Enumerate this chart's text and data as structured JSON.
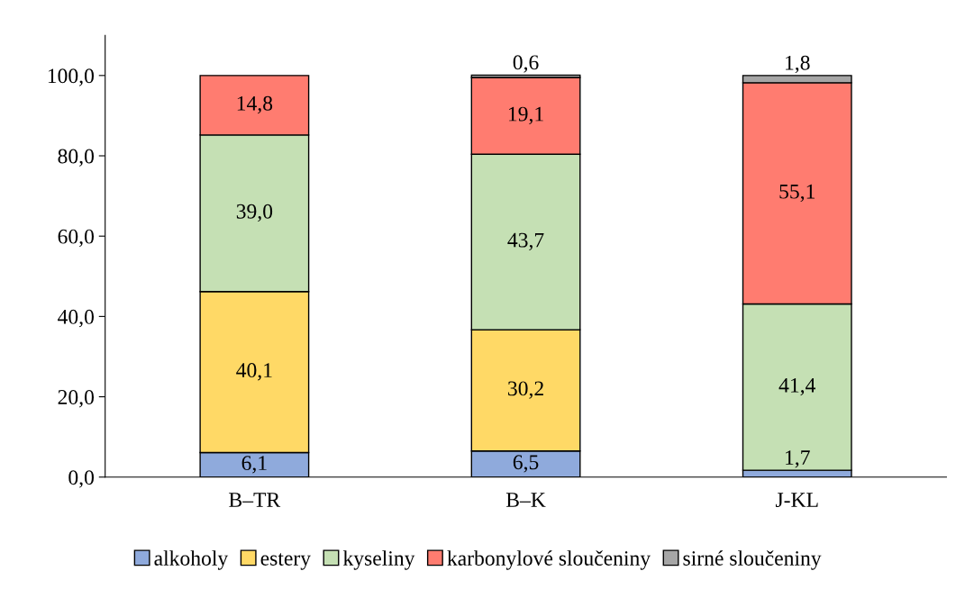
{
  "chart_data": {
    "type": "bar",
    "stacked": true,
    "categories": [
      "B–TR",
      "B–K",
      "J-KL"
    ],
    "series": [
      {
        "name": "alkoholy",
        "color": "#8faadc",
        "values": [
          6.1,
          6.5,
          1.7
        ],
        "value_labels": [
          "6,1",
          "6,5",
          "1,7"
        ]
      },
      {
        "name": "estery",
        "color": "#ffd966",
        "values": [
          40.1,
          30.2,
          null
        ],
        "value_labels": [
          "40,1",
          "30,2",
          null
        ]
      },
      {
        "name": "kyseliny",
        "color": "#c5e0b4",
        "values": [
          39.0,
          43.7,
          41.4
        ],
        "value_labels": [
          "39,0",
          "43,7",
          "41,4"
        ]
      },
      {
        "name": "karbonylové sloučeniny",
        "color": "#ff7c70",
        "values": [
          14.8,
          19.1,
          55.1
        ],
        "value_labels": [
          "14,8",
          "19,1",
          "55,1"
        ]
      },
      {
        "name": "sirné sloučeniny",
        "color": "#a6a6a6",
        "values": [
          null,
          0.6,
          1.8
        ],
        "value_labels": [
          null,
          "0,6",
          "1,8"
        ]
      }
    ],
    "ylim": [
      0,
      110
    ],
    "yticks": [
      {
        "value": 0,
        "label": "0,0"
      },
      {
        "value": 20,
        "label": "20,0"
      },
      {
        "value": 40,
        "label": "40,0"
      },
      {
        "value": 60,
        "label": "60,0"
      },
      {
        "value": 80,
        "label": "80,0"
      },
      {
        "value": 100,
        "label": "100,0"
      }
    ],
    "grid": false,
    "legend": "bottom"
  }
}
